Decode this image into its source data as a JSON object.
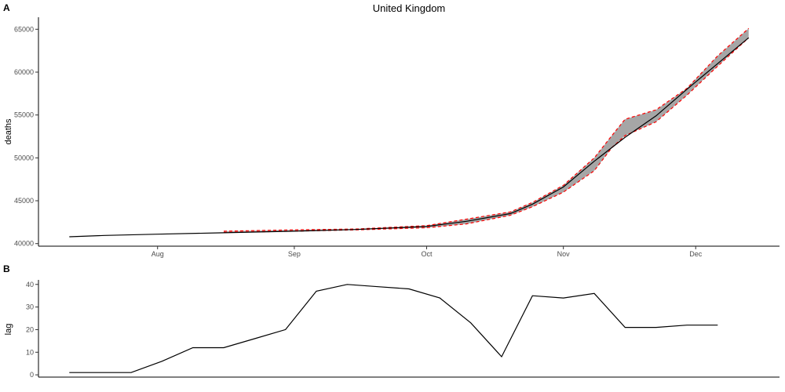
{
  "chart_data": [
    {
      "panel": "A",
      "type": "line",
      "title": "United Kingdom",
      "xlabel": "",
      "ylabel": "deaths",
      "x_ticks": [
        "Aug",
        "Sep",
        "Oct",
        "Nov",
        "Dec"
      ],
      "x_tick_dates": [
        "2020-08-01",
        "2020-09-01",
        "2020-10-01",
        "2020-11-01",
        "2020-12-01"
      ],
      "y_ticks": [
        40000,
        45000,
        50000,
        55000,
        60000,
        65000
      ],
      "ylim": [
        39700,
        66400
      ],
      "xlim": [
        "2020-07-05",
        "2020-12-20"
      ],
      "grid": false,
      "band_fill": "#a6a6a6",
      "bound_color": "#ff0000",
      "line_color": "#000000",
      "series_observed": {
        "x": [
          "2020-07-12",
          "2020-07-20",
          "2020-08-01",
          "2020-08-15",
          "2020-09-01",
          "2020-09-15",
          "2020-10-01",
          "2020-10-10",
          "2020-10-20",
          "2020-10-25",
          "2020-11-01",
          "2020-11-08",
          "2020-11-15",
          "2020-11-22",
          "2020-11-29",
          "2020-12-06",
          "2020-12-13"
        ],
        "y": [
          40800,
          40950,
          41100,
          41250,
          41450,
          41650,
          42000,
          42600,
          43500,
          44600,
          46600,
          49600,
          52400,
          54900,
          58000,
          61000,
          64000
        ]
      },
      "band_upper": {
        "x": [
          "2020-08-16",
          "2020-09-01",
          "2020-09-15",
          "2020-10-01",
          "2020-10-10",
          "2020-10-20",
          "2020-10-25",
          "2020-11-01",
          "2020-11-08",
          "2020-11-12",
          "2020-11-15",
          "2020-11-22",
          "2020-11-29",
          "2020-12-06",
          "2020-12-13"
        ],
        "y": [
          41450,
          41600,
          41700,
          42100,
          42850,
          43700,
          44800,
          46800,
          50000,
          52600,
          54500,
          55600,
          58100,
          61900,
          65100
        ]
      },
      "band_lower": {
        "x": [
          "2020-08-16",
          "2020-09-01",
          "2020-09-15",
          "2020-10-01",
          "2020-10-10",
          "2020-10-20",
          "2020-10-25",
          "2020-11-01",
          "2020-11-08",
          "2020-11-12",
          "2020-11-15",
          "2020-11-22",
          "2020-11-29",
          "2020-12-06",
          "2020-12-13"
        ],
        "y": [
          41300,
          41450,
          41600,
          41850,
          42300,
          43300,
          44300,
          46000,
          48500,
          51200,
          52600,
          54200,
          57300,
          60700,
          64000
        ]
      }
    },
    {
      "panel": "B",
      "type": "line",
      "title": "",
      "xlabel": "",
      "ylabel": "lag",
      "y_ticks": [
        0,
        10,
        20,
        30,
        40
      ],
      "ylim": [
        -1,
        42
      ],
      "xlim": [
        "2020-07-05",
        "2020-12-20"
      ],
      "grid": false,
      "line_color": "#000000",
      "x": [
        "2020-07-12",
        "2020-07-19",
        "2020-07-26",
        "2020-08-02",
        "2020-08-09",
        "2020-08-16",
        "2020-08-23",
        "2020-08-30",
        "2020-09-06",
        "2020-09-13",
        "2020-09-20",
        "2020-09-27",
        "2020-10-04",
        "2020-10-11",
        "2020-10-18",
        "2020-10-25",
        "2020-11-01",
        "2020-11-08",
        "2020-11-15",
        "2020-11-22",
        "2020-11-29",
        "2020-12-06"
      ],
      "values": [
        1,
        1,
        1,
        6,
        12,
        12,
        16,
        20,
        37,
        40,
        39,
        38,
        34,
        23,
        8,
        35,
        34,
        36,
        21,
        21,
        22,
        22
      ]
    }
  ],
  "labels": {
    "panel_a": "A",
    "panel_b": "B"
  }
}
